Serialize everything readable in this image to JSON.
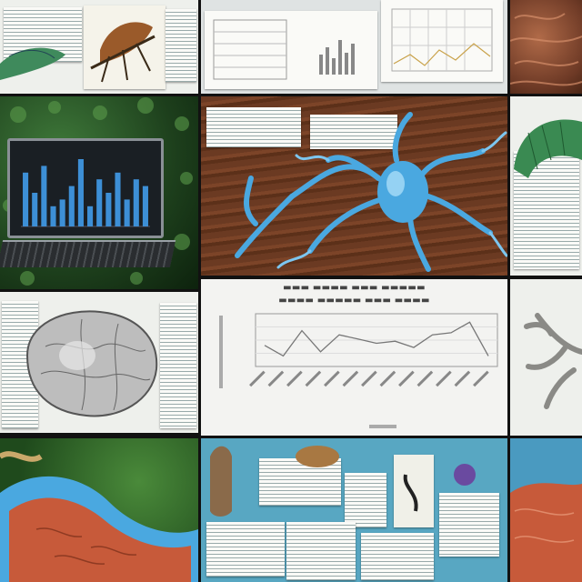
{
  "collage": {
    "rows": 4,
    "cols": 3,
    "tiles": [
      {
        "id": "r1c1",
        "subject": "leaf insect specimens on paper sheets"
      },
      {
        "id": "r1c2",
        "subject": "printed charts and data sheets"
      },
      {
        "id": "r1c3",
        "subject": "brown coral texture"
      },
      {
        "id": "r2c1",
        "subject": "laptop with blue bar chart in foliage"
      },
      {
        "id": "r2c2",
        "subject": "blue branching neuron on wood with papers"
      },
      {
        "id": "r2c3",
        "subject": "green specimen and data sheet"
      },
      {
        "id": "r3c1",
        "subject": "grey organ sketch with tables"
      },
      {
        "id": "r3c2",
        "subject": "line chart with illegible title"
      },
      {
        "id": "r3c3",
        "subject": "grey coral branches"
      },
      {
        "id": "r4c1",
        "subject": "red and blue organism on moss"
      },
      {
        "id": "r4c2",
        "subject": "pinned papers on blue board"
      },
      {
        "id": "r4c3",
        "subject": "red organism on blue"
      }
    ]
  },
  "laptop_chart": {
    "values": [
      8,
      5,
      9,
      3,
      4,
      6,
      10,
      3,
      7,
      5,
      8,
      4,
      7,
      6
    ]
  },
  "line_chart": {
    "values": [
      2.5,
      2.0,
      3.2,
      2.2,
      3.0,
      2.8,
      2.6,
      2.7,
      2.4,
      3.0,
      3.1,
      3.6,
      2.0
    ]
  },
  "colors": {
    "neuron_blue": "#4aa8e0",
    "wood": "#6b3a22",
    "bar_blue": "#3d8fd6",
    "coral_red": "#c75a3a"
  }
}
